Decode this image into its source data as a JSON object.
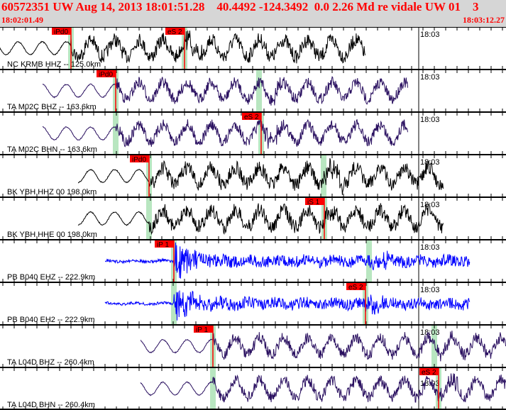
{
  "header": {
    "title": "60572351 UW Aug 14, 2013 18:01:51.28    40.4492 -124.3492  0.0 2.26 Md re vidale UW 01    3",
    "start_time": "18:02:01.49",
    "end_time": "18:03:12.27"
  },
  "minute_label": "18:03",
  "traces": [
    {
      "label": "NC KRMB HHZ -- 125.0km",
      "color": "#000000",
      "pick": "iPd0",
      "pick2": "eS 2"
    },
    {
      "label": "TA M02C BHZ -- 163.6km",
      "color": "#2a1060",
      "pick": "iPd0"
    },
    {
      "label": "TA M02C BHN -- 163.6km",
      "color": "#2a1060",
      "pick": "eS 2"
    },
    {
      "label": "BK YBH HHZ 00 198.0km",
      "color": "#000000",
      "pick": "iPd0"
    },
    {
      "label": "BK YBH HHE 00 198.0km",
      "color": "#000000",
      "pick": "iS 1"
    },
    {
      "label": "PB B040 EHZ -- 222.9km",
      "color": "#0000ff",
      "pick": "iP 1"
    },
    {
      "label": "PB B040 EH2 -- 222.9km",
      "color": "#0000ff",
      "pick": "eS 2"
    },
    {
      "label": "TA L04D BHZ -- 260.4km",
      "color": "#2a1060",
      "pick": "iP 1"
    },
    {
      "label": "TA L04D BHN -- 260.4km",
      "color": "#2a1060",
      "pick": "eS 2"
    }
  ],
  "colors": {
    "pick_box": "#ff0000",
    "pick_band": "#b8e6c0",
    "title": "#ff0000"
  }
}
